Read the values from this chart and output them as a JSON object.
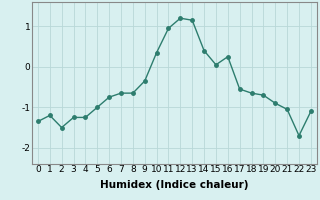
{
  "x": [
    0,
    1,
    2,
    3,
    4,
    5,
    6,
    7,
    8,
    9,
    10,
    11,
    12,
    13,
    14,
    15,
    16,
    17,
    18,
    19,
    20,
    21,
    22,
    23
  ],
  "y": [
    -1.35,
    -1.2,
    -1.5,
    -1.25,
    -1.25,
    -1.0,
    -0.75,
    -0.65,
    -0.65,
    -0.35,
    0.35,
    0.95,
    1.2,
    1.15,
    0.4,
    0.05,
    0.25,
    -0.55,
    -0.65,
    -0.7,
    -0.9,
    -1.05,
    -1.7,
    -1.1
  ],
  "line_color": "#2d7d6e",
  "marker": "o",
  "marker_size": 2.5,
  "bg_color": "#d8f0f0",
  "grid_color": "#b8d8d8",
  "xlabel": "Humidex (Indice chaleur)",
  "ylim": [
    -2.4,
    1.6
  ],
  "xlim": [
    -0.5,
    23.5
  ],
  "yticks": [
    -2,
    -1,
    0,
    1
  ],
  "xticks": [
    0,
    1,
    2,
    3,
    4,
    5,
    6,
    7,
    8,
    9,
    10,
    11,
    12,
    13,
    14,
    15,
    16,
    17,
    18,
    19,
    20,
    21,
    22,
    23
  ],
  "xlabel_fontsize": 7.5,
  "tick_fontsize": 6.5,
  "line_width": 1.0
}
